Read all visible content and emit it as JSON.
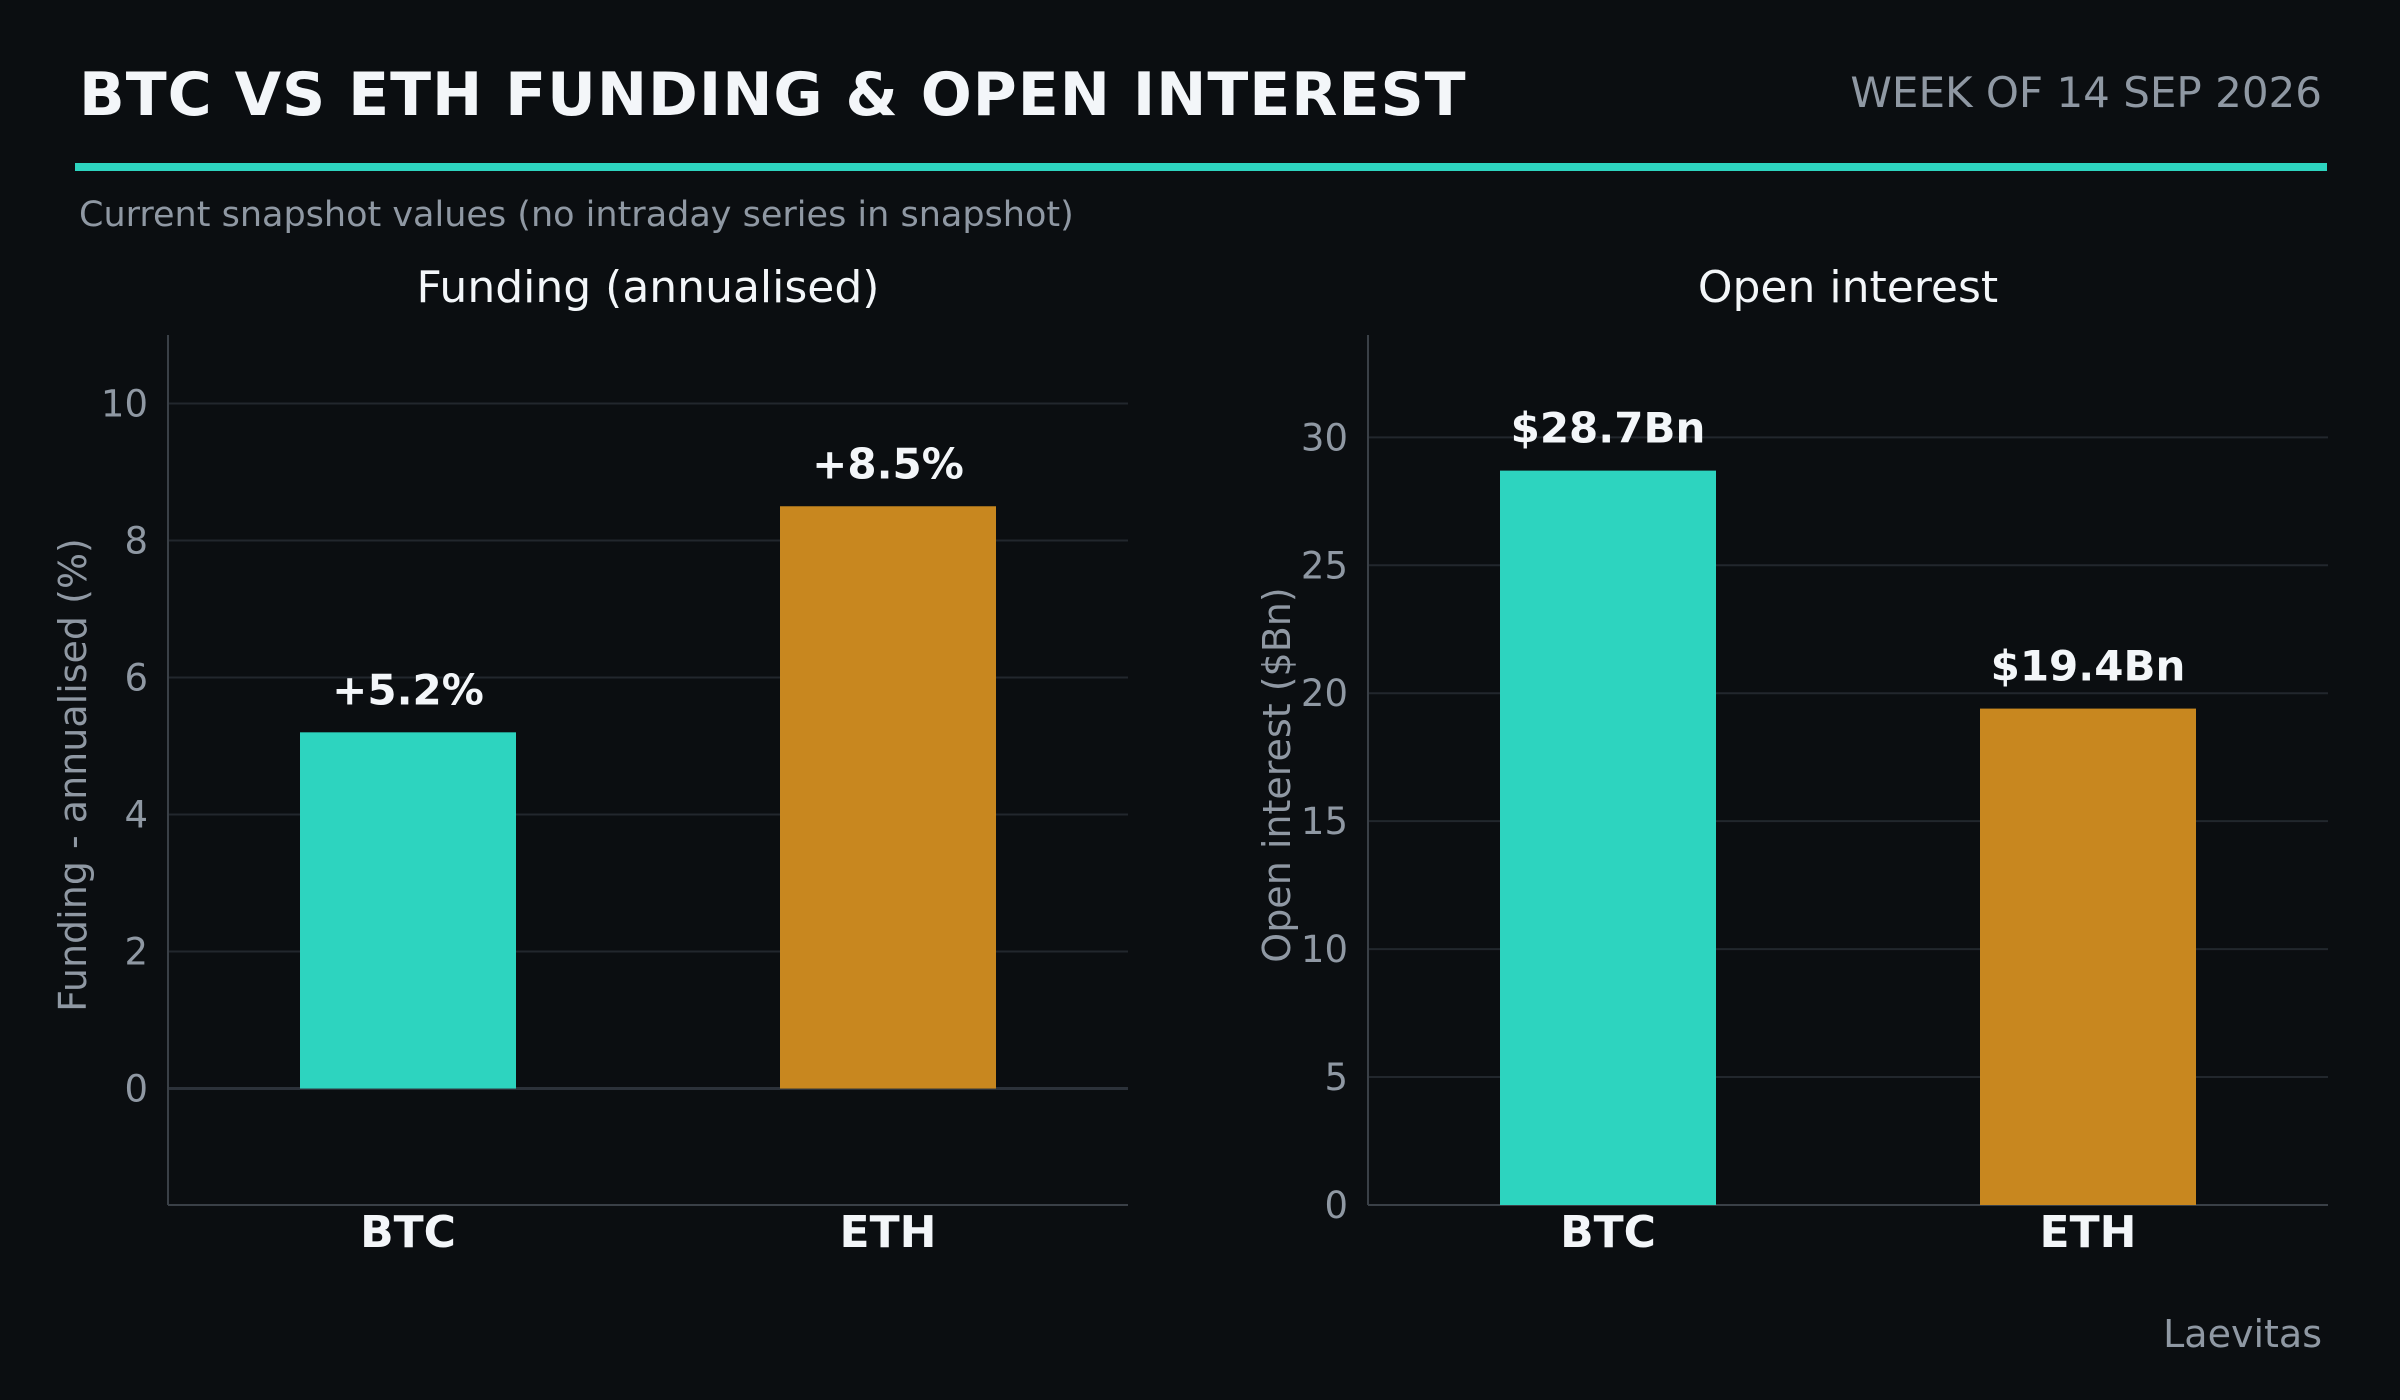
{
  "header": {
    "title": "BTC VS ETH FUNDING & OPEN INTEREST",
    "week": "WEEK OF 14 SEP 2026",
    "subtitle": "Current snapshot values (no intraday series in snapshot)"
  },
  "footer": {
    "source": "Laevitas"
  },
  "colors": {
    "background": "#0b0e11",
    "accent": "#2dd4bf",
    "btc": "#2dd4bf",
    "eth": "#c8871f",
    "grid": "#22272d",
    "muted_text": "#8f98a3"
  },
  "chart_data": [
    {
      "type": "bar",
      "title": "Funding (annualised)",
      "xlabel": "",
      "ylabel": "Funding - annualised (%)",
      "categories": [
        "BTC",
        "ETH"
      ],
      "values": [
        5.2,
        8.5
      ],
      "value_labels": [
        "+5.2%",
        "+8.5%"
      ],
      "bar_colors": [
        "#2dd4bf",
        "#c8871f"
      ],
      "ylim": [
        -1.7,
        11
      ],
      "yticks": [
        0,
        2,
        4,
        6,
        8,
        10
      ],
      "ytick_labels": [
        "0",
        "2",
        "4",
        "6",
        "8",
        "10"
      ],
      "grid": true,
      "zero_line": true
    },
    {
      "type": "bar",
      "title": "Open interest",
      "xlabel": "",
      "ylabel": "Open interest ($Bn)",
      "categories": [
        "BTC",
        "ETH"
      ],
      "values": [
        28.7,
        19.4
      ],
      "value_labels": [
        "$28.7Bn",
        "$19.4Bn"
      ],
      "bar_colors": [
        "#2dd4bf",
        "#c8871f"
      ],
      "ylim": [
        0,
        34
      ],
      "yticks": [
        0,
        5,
        10,
        15,
        20,
        25,
        30
      ],
      "ytick_labels": [
        "0",
        "5",
        "10",
        "15",
        "20",
        "25",
        "30"
      ],
      "grid": true,
      "zero_line": false
    }
  ]
}
